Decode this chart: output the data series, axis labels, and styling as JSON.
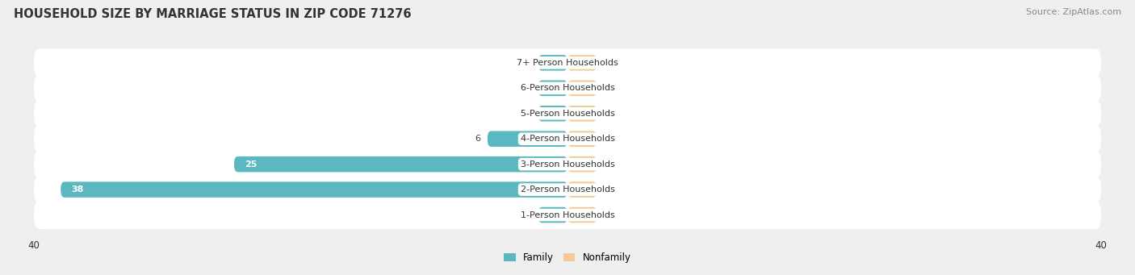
{
  "title": "HOUSEHOLD SIZE BY MARRIAGE STATUS IN ZIP CODE 71276",
  "source": "Source: ZipAtlas.com",
  "categories": [
    "7+ Person Households",
    "6-Person Households",
    "5-Person Households",
    "4-Person Households",
    "3-Person Households",
    "2-Person Households",
    "1-Person Households"
  ],
  "family_values": [
    0,
    0,
    0,
    6,
    25,
    38,
    0
  ],
  "nonfamily_values": [
    0,
    0,
    0,
    0,
    0,
    0,
    0
  ],
  "family_color": "#5BB8C1",
  "nonfamily_color": "#F5C99B",
  "xlim": [
    -40,
    40
  ],
  "bg_color": "#EFEFEF",
  "row_bg_color": "#FFFFFF",
  "title_fontsize": 10.5,
  "source_fontsize": 8,
  "label_fontsize": 8,
  "value_fontsize": 8
}
